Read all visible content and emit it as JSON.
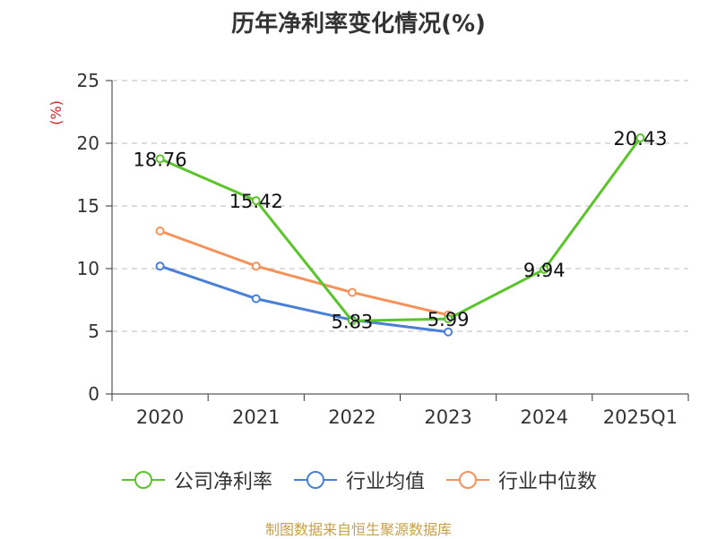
{
  "title": "历年净利率变化情况(%)",
  "source": "制图数据来自恒生聚源数据库",
  "chart_data": {
    "type": "line",
    "categories": [
      "2020",
      "2021",
      "2022",
      "2023",
      "2024",
      "2025Q1"
    ],
    "ylabel": "(%)",
    "ylim": [
      0,
      25
    ],
    "yticks": [
      0,
      5,
      10,
      15,
      20,
      25
    ],
    "grid": true,
    "legend_position": "bottom",
    "series": [
      {
        "name": "公司净利率",
        "color": "#5ac42a",
        "values": [
          18.76,
          15.42,
          5.83,
          5.99,
          9.94,
          20.43
        ],
        "labels": [
          "18.76",
          "15.42",
          "5.83",
          "5.99",
          "9.94",
          "20.43"
        ]
      },
      {
        "name": "行业均值",
        "color": "#4a7fd8",
        "values": [
          10.2,
          7.6,
          5.9,
          4.95,
          null,
          null
        ]
      },
      {
        "name": "行业中位数",
        "color": "#f5925a",
        "values": [
          13.0,
          10.2,
          8.1,
          6.3,
          null,
          null
        ]
      }
    ]
  }
}
